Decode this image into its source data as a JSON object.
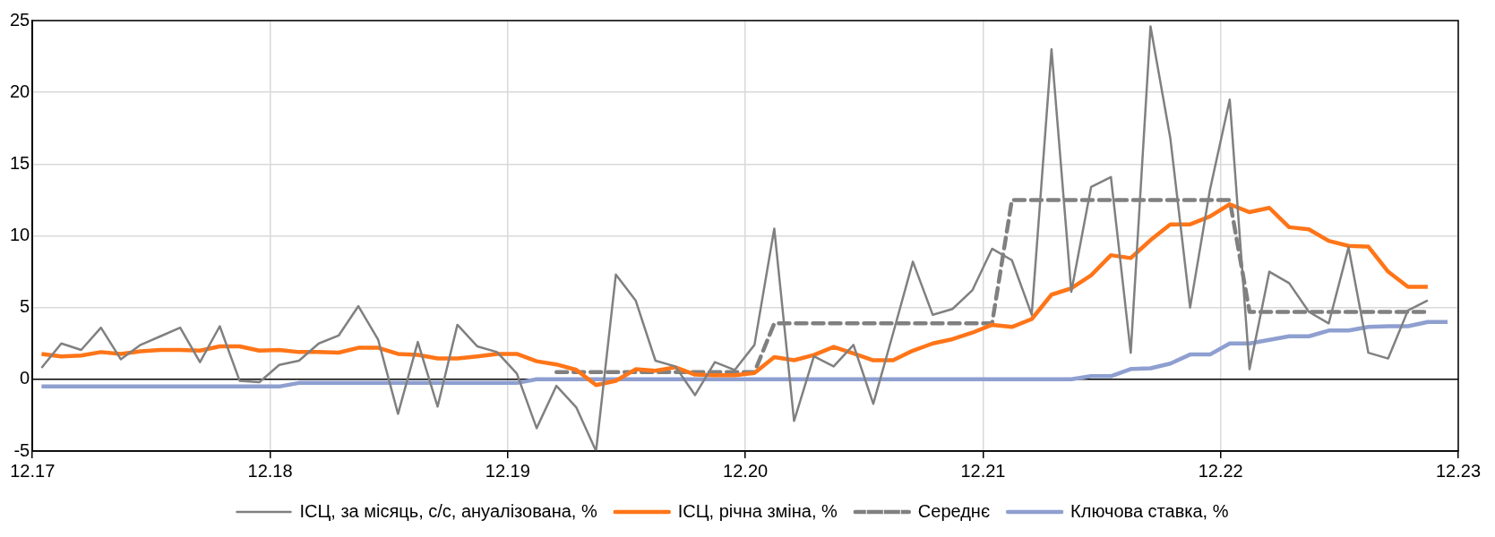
{
  "chart_data": {
    "type": "line",
    "x": [
      "2017-12-15",
      "2018-01-15",
      "2018-02-15",
      "2018-03-15",
      "2018-04-15",
      "2018-05-15",
      "2018-06-15",
      "2018-07-15",
      "2018-08-15",
      "2018-09-15",
      "2018-10-15",
      "2018-11-15",
      "2018-12-15",
      "2019-01-15",
      "2019-02-15",
      "2019-03-15",
      "2019-04-15",
      "2019-05-15",
      "2019-06-15",
      "2019-07-15",
      "2019-08-15",
      "2019-09-15",
      "2019-10-15",
      "2019-11-15",
      "2019-12-15",
      "2020-01-15",
      "2020-02-15",
      "2020-03-15",
      "2020-04-15",
      "2020-05-15",
      "2020-06-15",
      "2020-07-15",
      "2020-08-15",
      "2020-09-15",
      "2020-10-15",
      "2020-11-15",
      "2020-12-15",
      "2021-01-15",
      "2021-02-15",
      "2021-03-15",
      "2021-04-15",
      "2021-05-15",
      "2021-06-15",
      "2021-07-15",
      "2021-08-15",
      "2021-09-15",
      "2021-10-15",
      "2021-11-15",
      "2021-12-15",
      "2022-01-15",
      "2022-02-15",
      "2022-03-15",
      "2022-04-15",
      "2022-05-15",
      "2022-06-15",
      "2022-07-15",
      "2022-08-15",
      "2022-09-15",
      "2022-10-15",
      "2022-11-15",
      "2022-12-15",
      "2023-01-15",
      "2023-02-15",
      "2023-03-15",
      "2023-04-15",
      "2023-05-15",
      "2023-06-15",
      "2023-07-15",
      "2023-08-15",
      "2023-09-15",
      "2023-10-15",
      "2023-11-15"
    ],
    "series": [
      {
        "name": "ІСЦ, за місяць, с/с, ануалізована, %",
        "color": "#808080",
        "values": [
          0.8,
          2.5,
          2.05,
          3.6,
          1.4,
          2.4,
          3.0,
          3.6,
          1.2,
          3.7,
          -0.1,
          -0.2,
          1.0,
          1.3,
          2.5,
          3.05,
          5.1,
          2.75,
          -2.4,
          2.6,
          -1.9,
          3.8,
          2.3,
          1.9,
          0.4,
          -3.4,
          -0.45,
          -1.95,
          -5.0,
          7.3,
          5.5,
          1.3,
          0.9,
          -1.1,
          1.2,
          0.65,
          2.4,
          10.5,
          -2.9,
          1.6,
          0.9,
          2.4,
          -1.7,
          3.2,
          8.2,
          4.5,
          4.9,
          6.2,
          9.1,
          8.3,
          4.5,
          23.0,
          6.1,
          13.4,
          14.1,
          1.85,
          24.6,
          16.8,
          5.0,
          13.2,
          19.5,
          0.7,
          7.5,
          6.7,
          4.7,
          3.9,
          9.2,
          1.85,
          1.45,
          4.8,
          5.5,
          null
        ]
      },
      {
        "name": "ІСЦ, річна зміна, %",
        "color": "#ff7518",
        "values": [
          1.77,
          1.6,
          1.66,
          1.9,
          1.77,
          1.95,
          2.05,
          2.05,
          2.0,
          2.3,
          2.3,
          2.0,
          2.05,
          1.9,
          1.9,
          1.86,
          2.2,
          2.2,
          1.77,
          1.7,
          1.45,
          1.46,
          1.6,
          1.77,
          1.77,
          1.26,
          1.04,
          0.66,
          -0.4,
          -0.1,
          0.7,
          0.6,
          0.84,
          0.33,
          0.29,
          0.29,
          0.44,
          1.55,
          1.33,
          1.7,
          2.26,
          1.8,
          1.33,
          1.33,
          2.0,
          2.5,
          2.8,
          3.25,
          3.8,
          3.65,
          4.2,
          5.9,
          6.35,
          7.25,
          8.65,
          8.45,
          9.7,
          10.8,
          10.8,
          11.35,
          12.2,
          11.65,
          11.95,
          10.6,
          10.45,
          9.65,
          9.3,
          9.25,
          7.5,
          6.45,
          6.45,
          null
        ]
      },
      {
        "name": "Середнє",
        "color": "#808080",
        "line_style": "dashed",
        "values": [
          null,
          null,
          null,
          null,
          null,
          null,
          null,
          null,
          null,
          null,
          null,
          null,
          null,
          null,
          null,
          null,
          null,
          null,
          null,
          null,
          null,
          null,
          null,
          null,
          null,
          null,
          0.5,
          0.5,
          0.5,
          0.5,
          0.5,
          0.5,
          0.5,
          0.5,
          0.5,
          0.5,
          0.5,
          3.9,
          3.9,
          3.9,
          3.9,
          3.9,
          3.9,
          3.9,
          3.9,
          3.9,
          3.9,
          3.9,
          3.9,
          12.5,
          12.5,
          12.5,
          12.5,
          12.5,
          12.5,
          12.5,
          12.5,
          12.5,
          12.5,
          12.5,
          12.5,
          4.7,
          4.7,
          4.7,
          4.7,
          4.7,
          4.7,
          4.7,
          4.7,
          4.7,
          4.7,
          null
        ]
      },
      {
        "name": "Ключова ставка, %",
        "color": "#8e9fd0",
        "values": [
          -0.5,
          -0.5,
          -0.5,
          -0.5,
          -0.5,
          -0.5,
          -0.5,
          -0.5,
          -0.5,
          -0.5,
          -0.5,
          -0.5,
          -0.5,
          -0.25,
          -0.25,
          -0.25,
          -0.25,
          -0.25,
          -0.25,
          -0.25,
          -0.25,
          -0.25,
          -0.25,
          -0.25,
          -0.25,
          0,
          0,
          0,
          0,
          0,
          0,
          0,
          0,
          0,
          0,
          0,
          0,
          0,
          0,
          0,
          0,
          0,
          0,
          0,
          0,
          0,
          0,
          0,
          0,
          0,
          0,
          0,
          0,
          0.22,
          0.22,
          0.72,
          0.77,
          1.1,
          1.73,
          1.73,
          2.5,
          2.5,
          2.75,
          3.0,
          3.0,
          3.4,
          3.4,
          3.65,
          3.7,
          3.7,
          4.0,
          4.0
        ]
      }
    ],
    "xlim": [
      "2017-12",
      "2023-12"
    ],
    "xticks": [
      {
        "value": "2017-12",
        "label": "12.17"
      },
      {
        "value": "2018-12",
        "label": "12.18"
      },
      {
        "value": "2019-12",
        "label": "12.19"
      },
      {
        "value": "2020-12",
        "label": "12.20"
      },
      {
        "value": "2021-12",
        "label": "12.21"
      },
      {
        "value": "2022-12",
        "label": "12.22"
      },
      {
        "value": "2023-12",
        "label": "12.23"
      }
    ],
    "ylim": [
      -5,
      25
    ],
    "yticks": [
      -5,
      0,
      5,
      10,
      15,
      20,
      25
    ],
    "grid": true,
    "legend": "bottom",
    "marker": "none",
    "line_style": "solid"
  }
}
